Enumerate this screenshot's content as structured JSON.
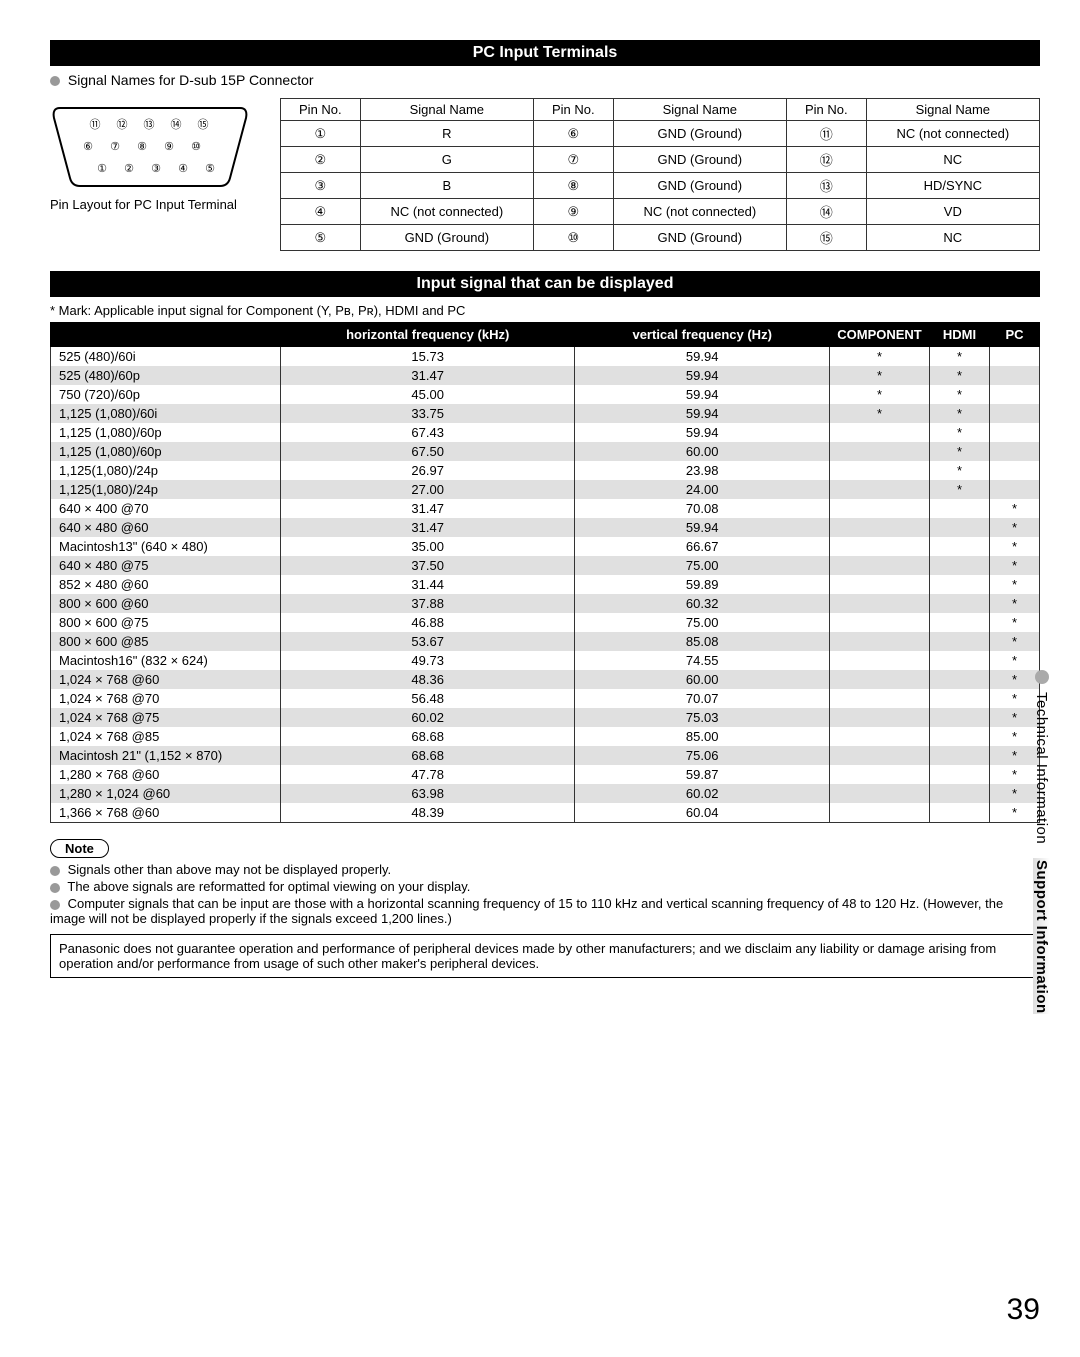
{
  "section1": {
    "title": "PC Input Terminals"
  },
  "connector": {
    "caption": "Signal Names for D-sub 15P Connector",
    "layout_caption": "Pin Layout for PC Input Terminal"
  },
  "pin_table": {
    "headers": [
      "Pin No.",
      "Signal Name",
      "Pin No.",
      "Signal Name",
      "Pin No.",
      "Signal Name"
    ],
    "rows": [
      [
        "①",
        "R",
        "⑥",
        "GND (Ground)",
        "⑪",
        "NC (not connected)"
      ],
      [
        "②",
        "G",
        "⑦",
        "GND (Ground)",
        "⑫",
        "NC"
      ],
      [
        "③",
        "B",
        "⑧",
        "GND (Ground)",
        "⑬",
        "HD/SYNC"
      ],
      [
        "④",
        "NC (not connected)",
        "⑨",
        "NC (not connected)",
        "⑭",
        "VD"
      ],
      [
        "⑤",
        "GND (Ground)",
        "⑩",
        "GND (Ground)",
        "⑮",
        "NC"
      ]
    ]
  },
  "section2": {
    "title": "Input signal that can be displayed"
  },
  "mark_note": "* Mark: Applicable input signal for Component (Y, Pʙ, Pʀ), HDMI and PC",
  "sig_headers": [
    "",
    "horizontal frequency (kHz)",
    "vertical frequency (Hz)",
    "COMPONENT",
    "HDMI",
    "PC"
  ],
  "sig_rows": [
    {
      "mode": "525 (480)/60i",
      "h": "15.73",
      "v": "59.94",
      "c": "*",
      "hd": "*",
      "pc": ""
    },
    {
      "mode": "525 (480)/60p",
      "h": "31.47",
      "v": "59.94",
      "c": "*",
      "hd": "*",
      "pc": ""
    },
    {
      "mode": "750 (720)/60p",
      "h": "45.00",
      "v": "59.94",
      "c": "*",
      "hd": "*",
      "pc": ""
    },
    {
      "mode": "1,125 (1,080)/60i",
      "h": "33.75",
      "v": "59.94",
      "c": "*",
      "hd": "*",
      "pc": ""
    },
    {
      "mode": "1,125 (1,080)/60p",
      "h": "67.43",
      "v": "59.94",
      "c": "",
      "hd": "*",
      "pc": ""
    },
    {
      "mode": "1,125 (1,080)/60p",
      "h": "67.50",
      "v": "60.00",
      "c": "",
      "hd": "*",
      "pc": ""
    },
    {
      "mode": "1,125(1,080)/24p",
      "h": "26.97",
      "v": "23.98",
      "c": "",
      "hd": "*",
      "pc": ""
    },
    {
      "mode": "1,125(1,080)/24p",
      "h": "27.00",
      "v": "24.00",
      "c": "",
      "hd": "*",
      "pc": ""
    },
    {
      "mode": "640 × 400 @70",
      "h": "31.47",
      "v": "70.08",
      "c": "",
      "hd": "",
      "pc": "*"
    },
    {
      "mode": "640 × 480 @60",
      "h": "31.47",
      "v": "59.94",
      "c": "",
      "hd": "",
      "pc": "*"
    },
    {
      "mode": "Macintosh13\" (640 × 480)",
      "h": "35.00",
      "v": "66.67",
      "c": "",
      "hd": "",
      "pc": "*"
    },
    {
      "mode": "640 × 480 @75",
      "h": "37.50",
      "v": "75.00",
      "c": "",
      "hd": "",
      "pc": "*"
    },
    {
      "mode": "852 × 480 @60",
      "h": "31.44",
      "v": "59.89",
      "c": "",
      "hd": "",
      "pc": "*"
    },
    {
      "mode": "800 × 600 @60",
      "h": "37.88",
      "v": "60.32",
      "c": "",
      "hd": "",
      "pc": "*"
    },
    {
      "mode": "800 × 600 @75",
      "h": "46.88",
      "v": "75.00",
      "c": "",
      "hd": "",
      "pc": "*"
    },
    {
      "mode": "800 × 600 @85",
      "h": "53.67",
      "v": "85.08",
      "c": "",
      "hd": "",
      "pc": "*"
    },
    {
      "mode": "Macintosh16\" (832 × 624)",
      "h": "49.73",
      "v": "74.55",
      "c": "",
      "hd": "",
      "pc": "*"
    },
    {
      "mode": "1,024 × 768 @60",
      "h": "48.36",
      "v": "60.00",
      "c": "",
      "hd": "",
      "pc": "*"
    },
    {
      "mode": "1,024 × 768 @70",
      "h": "56.48",
      "v": "70.07",
      "c": "",
      "hd": "",
      "pc": "*"
    },
    {
      "mode": "1,024 × 768 @75",
      "h": "60.02",
      "v": "75.03",
      "c": "",
      "hd": "",
      "pc": "*"
    },
    {
      "mode": "1,024 × 768 @85",
      "h": "68.68",
      "v": "85.00",
      "c": "",
      "hd": "",
      "pc": "*"
    },
    {
      "mode": "Macintosh 21\" (1,152 × 870)",
      "h": "68.68",
      "v": "75.06",
      "c": "",
      "hd": "",
      "pc": "*"
    },
    {
      "mode": "1,280 × 768 @60",
      "h": "47.78",
      "v": "59.87",
      "c": "",
      "hd": "",
      "pc": "*"
    },
    {
      "mode": "1,280 × 1,024 @60",
      "h": "63.98",
      "v": "60.02",
      "c": "",
      "hd": "",
      "pc": "*"
    },
    {
      "mode": "1,366 × 768 @60",
      "h": "48.39",
      "v": "60.04",
      "c": "",
      "hd": "",
      "pc": "*"
    }
  ],
  "note_label": "Note",
  "notes": [
    "Signals other than above may not be displayed properly.",
    "The above signals are reformatted for optimal viewing on your display.",
    "Computer signals that can be input are those with a horizontal scanning frequency of 15 to 110 kHz and vertical scanning frequency of 48 to 120 Hz. (However, the image will not be displayed properly if the signals exceed 1,200 lines.)"
  ],
  "disclaimer": "Panasonic does not guarantee operation and performance of peripheral devices made by other manufacturers; and we disclaim any liability or damage arising from operation and/or performance from usage of such other maker's peripheral devices.",
  "side": {
    "tech": "Technical Information",
    "support": "Support Information"
  },
  "page": "39"
}
